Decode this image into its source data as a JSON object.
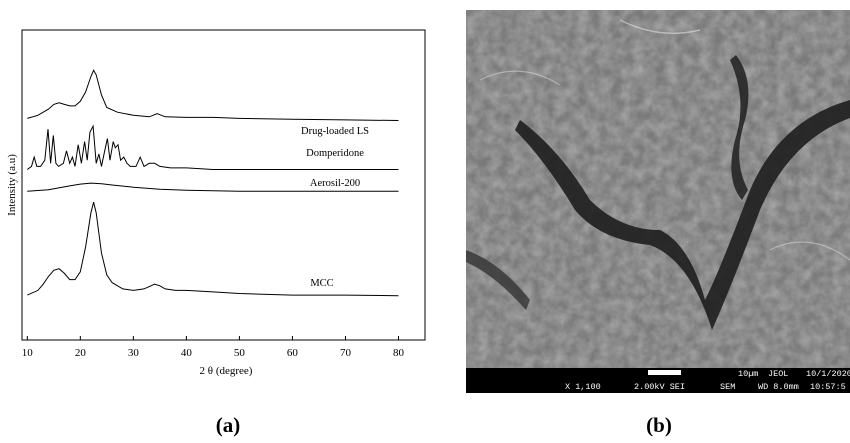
{
  "chart_data": {
    "type": "line",
    "xlabel": "2 θ (degree)",
    "ylabel": "Intensity (a.u)",
    "xlim": [
      9,
      85
    ],
    "ylim": [
      0,
      100
    ],
    "xticks": [
      10,
      20,
      30,
      40,
      50,
      60,
      70,
      80
    ],
    "series": [
      {
        "name": "Drug-loaded LS",
        "color": "#000000",
        "x": [
          10,
          12,
          14,
          15,
          16,
          17,
          18,
          19,
          20,
          21,
          22,
          22.5,
          23,
          24,
          25,
          27,
          30,
          33,
          34.5,
          36,
          40,
          45,
          50,
          60,
          70,
          80
        ],
        "values": [
          71.5,
          72.5,
          74.5,
          76,
          76.5,
          76,
          75.5,
          75.5,
          77,
          80,
          85,
          87,
          85.5,
          79,
          75,
          73.5,
          72.5,
          72,
          73,
          72,
          71.8,
          71.8,
          71.5,
          71.2,
          71,
          70.8
        ]
      },
      {
        "name": "Domperidone",
        "color": "#000000",
        "x": [
          10,
          10.8,
          11.3,
          11.8,
          12.5,
          13.3,
          13.9,
          14.4,
          14.9,
          15.4,
          15.9,
          16.8,
          17.4,
          18,
          18.5,
          19,
          19.6,
          20.2,
          20.8,
          21.3,
          21.8,
          22.4,
          23,
          23.5,
          24,
          24.6,
          25.1,
          25.6,
          26.2,
          26.6,
          27.1,
          27.6,
          28.2,
          28.8,
          29.4,
          30.5,
          31.3,
          32,
          33,
          34,
          35,
          37,
          40,
          45,
          50,
          55,
          60,
          70,
          80
        ],
        "values": [
          55,
          56,
          59,
          56,
          56,
          58,
          68,
          57,
          66,
          57,
          56,
          57,
          61,
          57,
          59,
          56,
          63,
          57,
          64,
          58,
          67,
          69,
          57,
          60,
          56,
          61,
          65,
          58,
          64,
          62,
          63,
          58,
          59,
          57,
          56,
          56,
          59,
          56,
          57,
          57,
          56,
          55.5,
          55.5,
          55,
          55,
          55,
          55,
          55,
          55
        ]
      },
      {
        "name": "Aerosil-200",
        "color": "#000000",
        "x": [
          10,
          14,
          18,
          20,
          22,
          24,
          26,
          30,
          35,
          40,
          50,
          60,
          70,
          80
        ],
        "values": [
          48,
          48.5,
          49.7,
          50.3,
          50.6,
          50.4,
          50,
          49.3,
          48.6,
          48.3,
          48,
          48,
          48,
          48
        ]
      },
      {
        "name": "MCC",
        "color": "#000000",
        "x": [
          10,
          12,
          13,
          14,
          15,
          16,
          17,
          18,
          19,
          20,
          21,
          22,
          22.5,
          23,
          24,
          25,
          26,
          28,
          30,
          32,
          34,
          35,
          36,
          38,
          40,
          45,
          50,
          60,
          70,
          80
        ],
        "values": [
          14.5,
          16,
          18,
          20.5,
          22.5,
          23,
          21.5,
          19.5,
          19.5,
          22,
          30,
          41,
          44.5,
          41,
          28,
          21,
          18.5,
          16.5,
          16,
          16.5,
          18,
          17.5,
          16.5,
          16,
          16,
          15.5,
          15,
          14.5,
          14.5,
          14.3
        ]
      }
    ]
  },
  "sem_image": {
    "scale_bar": "10µm",
    "maker": "JEOL",
    "date": "10/1/2020",
    "magnification": "X 1,100",
    "voltage": "2.00kV SEI",
    "mode": "SEM",
    "working_distance": "WD 8.0mm",
    "time": "10:57:5"
  },
  "captions": {
    "a": "(a)",
    "b": "(b)"
  }
}
